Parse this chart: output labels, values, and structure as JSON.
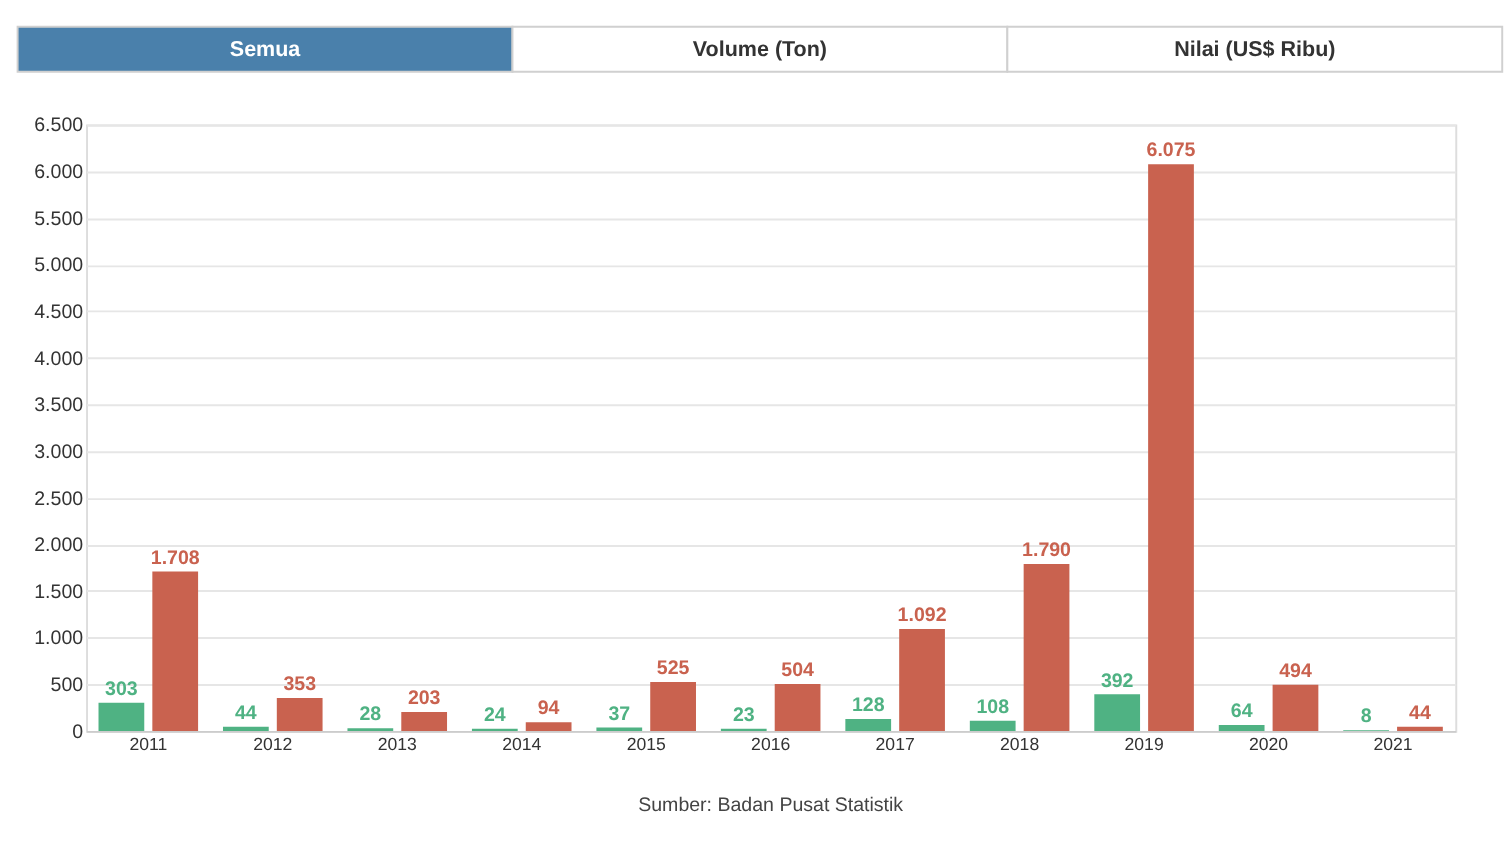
{
  "chart_data": {
    "type": "bar",
    "categories": [
      "2011",
      "2012",
      "2013",
      "2014",
      "2015",
      "2016",
      "2017",
      "2018",
      "2019",
      "2020",
      "2021"
    ],
    "series": [
      {
        "color": "#4fb283",
        "values": [
          303,
          44,
          28,
          24,
          37,
          23,
          128,
          108,
          392,
          64,
          8
        ],
        "value_labels": [
          "303",
          "44",
          "28",
          "24",
          "37",
          "23",
          "128",
          "108",
          "392",
          "64",
          "8"
        ]
      },
      {
        "color": "#c9624f",
        "values": [
          1708,
          353,
          203,
          94,
          525,
          504,
          1092,
          1790,
          6075,
          494,
          44
        ],
        "value_labels": [
          "1.708",
          "353",
          "203",
          "94",
          "525",
          "504",
          "1.092",
          "1.790",
          "6.075",
          "494",
          "44"
        ]
      }
    ],
    "ylim": [
      0,
      6500
    ],
    "yticks": [
      0,
      500,
      {
        "value": 1000,
        "label": "1.000"
      },
      {
        "value": 1500,
        "label": "1.500"
      },
      {
        "value": 2000,
        "label": "2.000"
      },
      {
        "value": 2500,
        "label": "2.500"
      },
      {
        "value": 3000,
        "label": "3.000"
      },
      {
        "value": 3500,
        "label": "3.500"
      },
      {
        "value": 4000,
        "label": "4.000"
      },
      {
        "value": 4500,
        "label": "4.500"
      },
      {
        "value": 5000,
        "label": "5.000"
      },
      {
        "value": 5500,
        "label": "5.500"
      },
      {
        "value": 6000,
        "label": "6.000"
      },
      {
        "value": 6500,
        "label": "6.500"
      }
    ],
    "grid": "y",
    "legend": false,
    "annotations": [
      "Semua",
      "Volume (Ton)",
      "Nilai (US$ Ribu)",
      "Sumber: Badan Pusat Statistik"
    ]
  }
}
